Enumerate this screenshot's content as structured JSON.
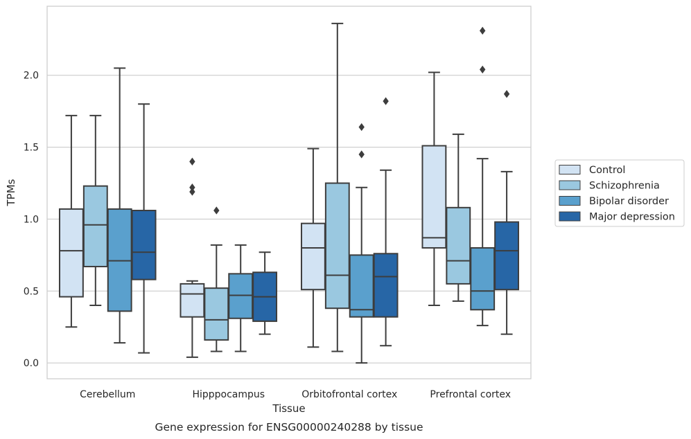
{
  "chart_data": {
    "type": "box",
    "xlabel": "Tissue",
    "ylabel": "TPMs",
    "caption": "Gene expression for ENSG00000240288 by tissue",
    "ylim": [
      -0.11,
      2.48
    ],
    "yticks": [
      "0.0",
      "0.5",
      "1.0",
      "1.5",
      "2.0"
    ],
    "grid": "horizontal",
    "legend_position": "right",
    "categories": [
      "Cerebellum",
      "Hipppocampus",
      "Orbitofrontal cortex",
      "Prefrontal cortex"
    ],
    "series": [
      {
        "name": "Control",
        "color": "#d2e3f3",
        "boxes": [
          {
            "whislo": 0.25,
            "q1": 0.46,
            "med": 0.78,
            "q3": 1.07,
            "whishi": 1.72,
            "fliers": []
          },
          {
            "whislo": 0.04,
            "q1": 0.32,
            "med": 0.48,
            "q3": 0.55,
            "whishi": 0.57,
            "fliers": [
              1.4,
              1.22,
              1.19
            ]
          },
          {
            "whislo": 0.11,
            "q1": 0.51,
            "med": 0.8,
            "q3": 0.97,
            "whishi": 1.49,
            "fliers": []
          },
          {
            "whislo": 0.4,
            "q1": 0.8,
            "med": 0.87,
            "q3": 1.51,
            "whishi": 2.02,
            "fliers": []
          }
        ]
      },
      {
        "name": "Schizophrenia",
        "color": "#9ac8e0",
        "boxes": [
          {
            "whislo": 0.4,
            "q1": 0.67,
            "med": 0.96,
            "q3": 1.23,
            "whishi": 1.72,
            "fliers": []
          },
          {
            "whislo": 0.08,
            "q1": 0.16,
            "med": 0.3,
            "q3": 0.52,
            "whishi": 0.82,
            "fliers": [
              1.06
            ]
          },
          {
            "whislo": 0.08,
            "q1": 0.38,
            "med": 0.61,
            "q3": 1.25,
            "whishi": 2.36,
            "fliers": []
          },
          {
            "whislo": 0.43,
            "q1": 0.55,
            "med": 0.71,
            "q3": 1.08,
            "whishi": 1.59,
            "fliers": []
          }
        ]
      },
      {
        "name": "Bipolar disorder",
        "color": "#5aa0cd",
        "boxes": [
          {
            "whislo": 0.14,
            "q1": 0.36,
            "med": 0.71,
            "q3": 1.07,
            "whishi": 2.05,
            "fliers": []
          },
          {
            "whislo": 0.08,
            "q1": 0.31,
            "med": 0.47,
            "q3": 0.62,
            "whishi": 0.82,
            "fliers": []
          },
          {
            "whislo": 0.0,
            "q1": 0.32,
            "med": 0.37,
            "q3": 0.75,
            "whishi": 1.22,
            "fliers": [
              1.45,
              1.64
            ]
          },
          {
            "whislo": 0.26,
            "q1": 0.37,
            "med": 0.5,
            "q3": 0.8,
            "whishi": 1.42,
            "fliers": [
              2.04,
              2.31
            ]
          }
        ]
      },
      {
        "name": "Major depression",
        "color": "#2766a6",
        "boxes": [
          {
            "whislo": 0.07,
            "q1": 0.58,
            "med": 0.77,
            "q3": 1.06,
            "whishi": 1.8,
            "fliers": []
          },
          {
            "whislo": 0.2,
            "q1": 0.29,
            "med": 0.46,
            "q3": 0.63,
            "whishi": 0.77,
            "fliers": []
          },
          {
            "whislo": 0.12,
            "q1": 0.32,
            "med": 0.6,
            "q3": 0.76,
            "whishi": 1.34,
            "fliers": [
              1.82
            ]
          },
          {
            "whislo": 0.2,
            "q1": 0.51,
            "med": 0.78,
            "q3": 0.98,
            "whishi": 1.33,
            "fliers": [
              1.87
            ]
          }
        ]
      }
    ]
  }
}
